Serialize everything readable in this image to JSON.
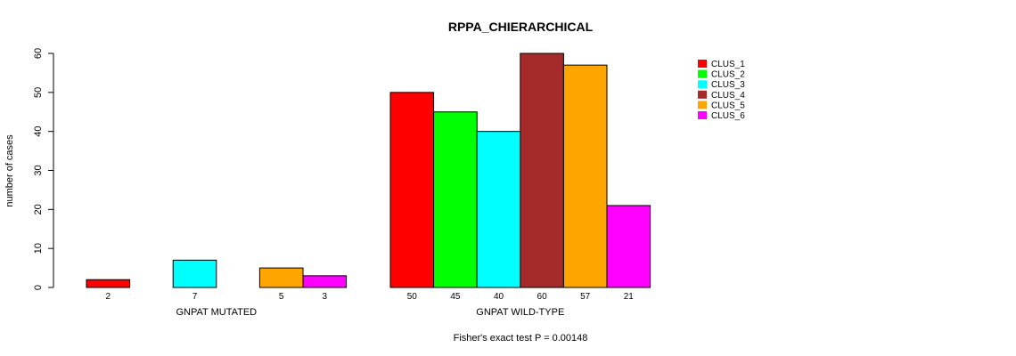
{
  "chart_data": {
    "type": "bar",
    "title": "RPPA_CHIERARCHICAL",
    "ylabel": "number of cases",
    "subtitle": "Fisher's exact test P = 0.00148",
    "ylim": [
      0,
      60
    ],
    "yticks": [
      0,
      10,
      20,
      30,
      40,
      50,
      60
    ],
    "legend_position": "top-right",
    "series": [
      {
        "name": "CLUS_1",
        "color": "#ff0000"
      },
      {
        "name": "CLUS_2",
        "color": "#00ff00"
      },
      {
        "name": "CLUS_3",
        "color": "#00ffff"
      },
      {
        "name": "CLUS_4",
        "color": "#a52a2a"
      },
      {
        "name": "CLUS_5",
        "color": "#ffa500"
      },
      {
        "name": "CLUS_6",
        "color": "#ff00ff"
      }
    ],
    "groups": [
      {
        "label": "GNPAT MUTATED",
        "values": [
          2,
          0,
          7,
          0,
          5,
          3
        ],
        "value_labels": [
          "2",
          "",
          "7",
          "",
          "5",
          "3"
        ]
      },
      {
        "label": "GNPAT WILD-TYPE",
        "values": [
          50,
          45,
          40,
          60,
          57,
          21
        ],
        "value_labels": [
          "50",
          "45",
          "40",
          "60",
          "57",
          "21"
        ]
      }
    ]
  }
}
